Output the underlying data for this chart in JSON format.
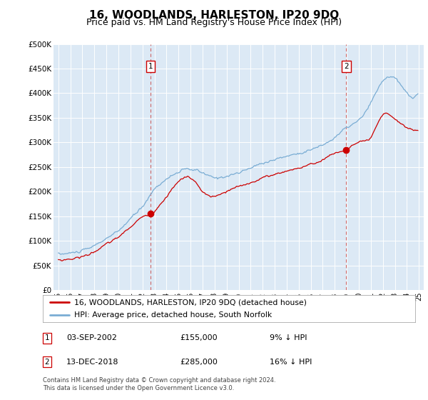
{
  "title": "16, WOODLANDS, HARLESTON, IP20 9DQ",
  "subtitle": "Price paid vs. HM Land Registry's House Price Index (HPI)",
  "ylim": [
    0,
    500000
  ],
  "yticks": [
    0,
    50000,
    100000,
    150000,
    200000,
    250000,
    300000,
    350000,
    400000,
    450000,
    500000
  ],
  "hpi_color": "#7aadd4",
  "price_color": "#cc0000",
  "plot_bg": "#dce9f5",
  "marker1_year": 2002.67,
  "marker1_price": 155000,
  "marker2_year": 2018.95,
  "marker2_price": 285000,
  "legend_line1": "16, WOODLANDS, HARLESTON, IP20 9DQ (detached house)",
  "legend_line2": "HPI: Average price, detached house, South Norfolk",
  "footer": "Contains HM Land Registry data © Crown copyright and database right 2024.\nThis data is licensed under the Open Government Licence v3.0.",
  "title_fontsize": 11,
  "subtitle_fontsize": 9
}
